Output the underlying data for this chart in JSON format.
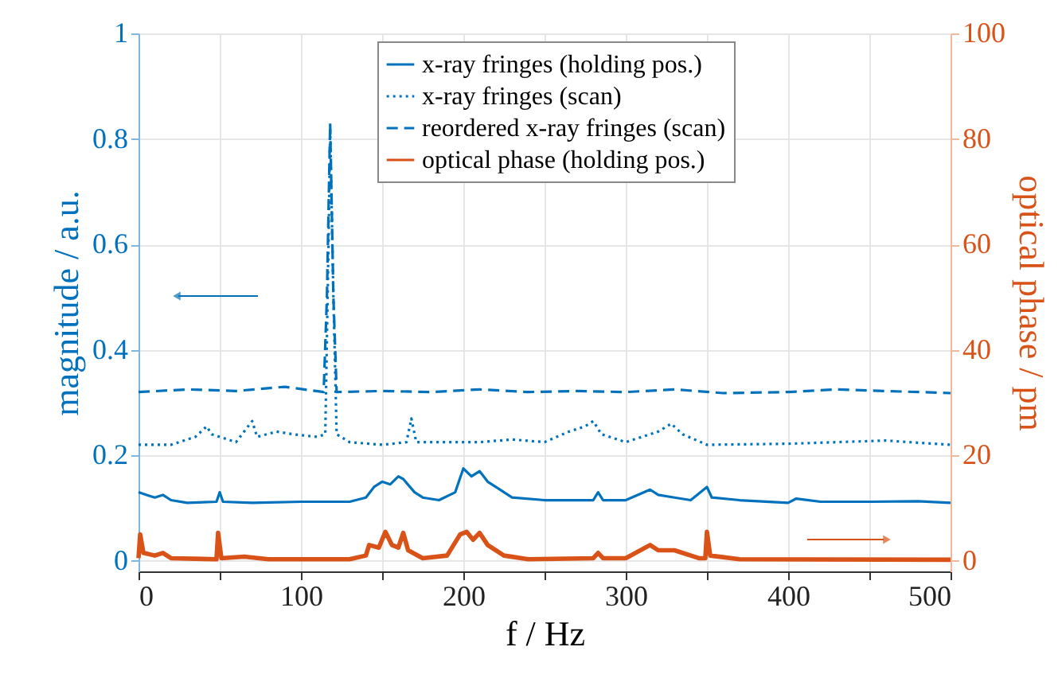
{
  "chart_data": {
    "type": "line",
    "xlabel": "f / Hz",
    "ylabel": "magnitude / a.u.",
    "y2label": "optical phase / pm",
    "xlim": [
      0,
      500
    ],
    "xticks": [
      0,
      {
        "value": 50,
        "label": null
      },
      100,
      {
        "value": 150,
        "label": null
      },
      200,
      {
        "value": 250,
        "label": null
      },
      300,
      {
        "value": 350,
        "label": null
      },
      400,
      {
        "value": 450,
        "label": null
      },
      500
    ],
    "ylim": [
      -0.02,
      1
    ],
    "yticks": [
      0,
      0.2,
      0.4,
      0.6,
      0.8,
      1
    ],
    "y2lim": [
      -2,
      100
    ],
    "y2ticks": [
      0,
      20,
      40,
      60,
      80,
      100
    ],
    "grid": true,
    "legend": "top",
    "marker": "none",
    "series": [
      {
        "name": "x-ray fringes (holding pos.)",
        "color": "#0072bd",
        "line_style": "solid",
        "x": [
          0,
          5,
          10,
          15,
          20,
          30,
          48,
          50,
          52,
          70,
          100,
          130,
          140,
          145,
          150,
          155,
          160,
          163,
          170,
          175,
          185,
          195,
          200,
          205,
          210,
          215,
          220,
          230,
          250,
          280,
          283,
          286,
          300,
          315,
          320,
          330,
          340,
          350,
          353,
          370,
          400,
          405,
          420,
          450,
          480,
          500
        ],
        "values": [
          0.13,
          0.125,
          0.12,
          0.125,
          0.115,
          0.11,
          0.112,
          0.13,
          0.112,
          0.11,
          0.112,
          0.112,
          0.12,
          0.14,
          0.15,
          0.145,
          0.16,
          0.155,
          0.13,
          0.12,
          0.115,
          0.13,
          0.175,
          0.16,
          0.17,
          0.15,
          0.14,
          0.12,
          0.115,
          0.115,
          0.13,
          0.115,
          0.115,
          0.135,
          0.125,
          0.12,
          0.115,
          0.14,
          0.12,
          0.115,
          0.11,
          0.118,
          0.112,
          0.112,
          0.113,
          0.11
        ]
      },
      {
        "name": "x-ray fringes (scan)",
        "color": "#0072bd",
        "line_style": "dotted",
        "x": [
          0,
          20,
          35,
          42,
          45,
          60,
          70,
          73,
          85,
          95,
          110,
          115,
          117,
          118,
          120,
          122,
          130,
          150,
          165,
          168,
          171,
          190,
          210,
          230,
          250,
          265,
          275,
          280,
          285,
          300,
          320,
          328,
          335,
          350,
          400,
          430,
          460,
          500
        ],
        "values": [
          0.22,
          0.22,
          0.235,
          0.255,
          0.24,
          0.225,
          0.265,
          0.235,
          0.245,
          0.24,
          0.235,
          0.24,
          0.6,
          0.82,
          0.5,
          0.24,
          0.225,
          0.22,
          0.225,
          0.27,
          0.225,
          0.225,
          0.225,
          0.23,
          0.225,
          0.245,
          0.255,
          0.265,
          0.24,
          0.225,
          0.245,
          0.26,
          0.24,
          0.22,
          0.222,
          0.225,
          0.228,
          0.22
        ]
      },
      {
        "name": "reordered x-ray fringes (scan)",
        "color": "#0072bd",
        "line_style": "dashed",
        "x": [
          0,
          30,
          60,
          90,
          114,
          116,
          118,
          120,
          122,
          150,
          180,
          210,
          240,
          270,
          300,
          330,
          360,
          400,
          430,
          460,
          500
        ],
        "values": [
          0.32,
          0.325,
          0.322,
          0.33,
          0.32,
          0.5,
          0.83,
          0.5,
          0.32,
          0.322,
          0.32,
          0.325,
          0.32,
          0.322,
          0.32,
          0.325,
          0.318,
          0.32,
          0.325,
          0.322,
          0.318
        ]
      },
      {
        "name": "optical phase (holding pos.)",
        "color": "#d95319",
        "line_style": "solid",
        "axis": "y2",
        "x": [
          0,
          1,
          3,
          10,
          15,
          20,
          48,
          49,
          51,
          65,
          80,
          130,
          140,
          142,
          148,
          152,
          156,
          160,
          163,
          166,
          175,
          190,
          198,
          202,
          206,
          210,
          215,
          225,
          240,
          280,
          283,
          286,
          300,
          315,
          320,
          330,
          345,
          349,
          350,
          352,
          370,
          500
        ],
        "values": [
          0.5,
          5,
          1.5,
          1,
          1.5,
          0.5,
          0.3,
          5.3,
          0.5,
          0.8,
          0.3,
          0.3,
          1,
          3,
          2.5,
          5.5,
          3,
          2.5,
          5.3,
          2,
          0.5,
          1,
          5,
          5.5,
          4,
          5.3,
          3,
          1,
          0.3,
          0.5,
          1.5,
          0.5,
          0.5,
          3,
          2,
          2,
          0.5,
          0.5,
          5.5,
          1,
          0.3,
          0.2
        ]
      }
    ]
  }
}
